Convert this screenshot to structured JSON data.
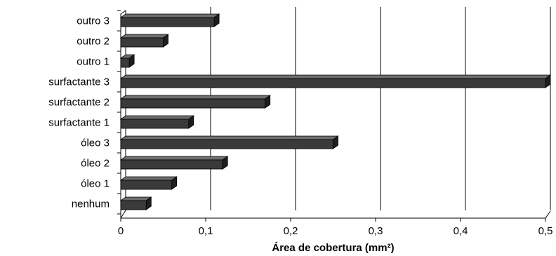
{
  "chart_data": {
    "type": "bar",
    "orientation": "horizontal",
    "style": "3d",
    "categories": [
      "nenhum",
      "óleo 1",
      "óleo 2",
      "óleo 3",
      "surfactante 1",
      "surfactante 2",
      "surfactante 3",
      "outro 1",
      "outro 2",
      "outro 3"
    ],
    "values": [
      0.03,
      0.06,
      0.12,
      0.25,
      0.08,
      0.17,
      0.5,
      0.01,
      0.05,
      0.11
    ],
    "xlabel": "Área de cobertura (mm²)",
    "ylabel": "",
    "xlim": [
      0,
      0.5
    ],
    "xticks": [
      0,
      0.1,
      0.2,
      0.3,
      0.4,
      0.5
    ],
    "xtick_labels": [
      "0",
      "0,1",
      "0,2",
      "0,3",
      "0,4",
      "0,5"
    ],
    "grid": "vertical",
    "legend": "none",
    "colors": {
      "bar_front": "#3a3a3a",
      "bar_top": "#6e6e6e",
      "bar_side": "#1e1e1e",
      "grid": "#000000",
      "axis": "#000000"
    }
  }
}
